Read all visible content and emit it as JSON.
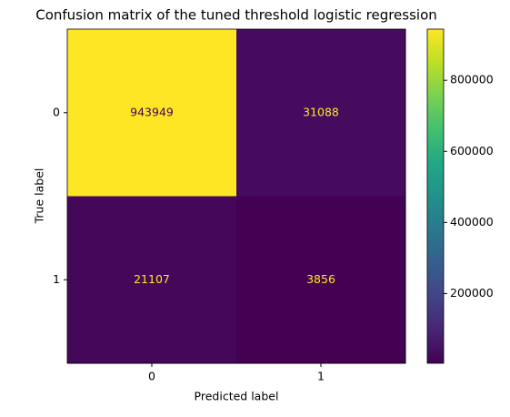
{
  "chart_data": {
    "type": "heatmap",
    "title": "Confusion matrix of the tuned threshold logistic regression",
    "xlabel": "Predicted label",
    "ylabel": "True label",
    "x_categories": [
      "0",
      "1"
    ],
    "y_categories": [
      "0",
      "1"
    ],
    "values": [
      [
        943949,
        31088
      ],
      [
        21107,
        3856
      ]
    ],
    "colormap": "viridis",
    "clim": [
      3856,
      943949
    ],
    "cticks": [
      200000,
      400000,
      600000,
      800000
    ]
  }
}
